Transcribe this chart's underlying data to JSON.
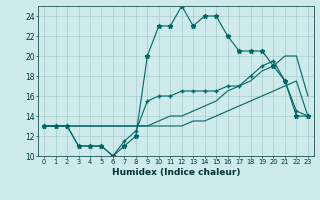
{
  "title": "",
  "xlabel": "Humidex (Indice chaleur)",
  "bg_color": "#ceeaea",
  "grid_color": "#aacccc",
  "line_color": "#006666",
  "xlim": [
    -0.5,
    23.5
  ],
  "ylim": [
    10,
    25
  ],
  "xticks": [
    0,
    1,
    2,
    3,
    4,
    5,
    6,
    7,
    8,
    9,
    10,
    11,
    12,
    13,
    14,
    15,
    16,
    17,
    18,
    19,
    20,
    21,
    22,
    23
  ],
  "yticks": [
    10,
    12,
    14,
    16,
    18,
    20,
    22,
    24
  ],
  "line1_x": [
    0,
    1,
    2,
    3,
    4,
    5,
    6,
    7,
    8,
    9,
    10,
    11,
    12,
    13,
    14,
    15,
    16,
    17,
    18,
    19,
    20,
    21,
    22,
    23
  ],
  "line1_y": [
    13,
    13,
    13,
    13,
    13,
    13,
    13,
    13,
    13,
    13,
    13,
    13,
    13,
    13.5,
    13.5,
    14,
    14.5,
    15,
    15.5,
    16,
    16.5,
    17,
    17.5,
    14
  ],
  "line2_x": [
    0,
    1,
    2,
    3,
    4,
    5,
    6,
    7,
    8,
    9,
    10,
    11,
    12,
    13,
    14,
    15,
    16,
    17,
    18,
    19,
    20,
    21,
    22,
    23
  ],
  "line2_y": [
    13,
    13,
    13,
    13,
    13,
    13,
    13,
    13,
    13,
    13,
    13.5,
    14,
    14,
    14.5,
    15,
    15.5,
    16.5,
    17,
    17.5,
    18.5,
    19,
    20,
    20,
    16
  ],
  "line3_x": [
    0,
    1,
    2,
    3,
    4,
    5,
    6,
    7,
    8,
    9,
    10,
    11,
    12,
    13,
    14,
    15,
    16,
    17,
    18,
    19,
    20,
    21,
    22,
    23
  ],
  "line3_y": [
    13,
    13,
    13,
    11,
    11,
    11,
    10,
    11,
    12,
    20,
    23,
    23,
    25,
    23,
    24,
    24,
    22,
    20.5,
    20.5,
    20.5,
    19,
    17.5,
    14,
    14
  ],
  "line4_x": [
    0,
    1,
    2,
    3,
    4,
    5,
    6,
    7,
    8,
    9,
    10,
    11,
    12,
    13,
    14,
    15,
    16,
    17,
    18,
    19,
    20,
    21,
    22,
    23
  ],
  "line4_y": [
    13,
    13,
    13,
    11,
    11,
    11,
    10,
    11.5,
    12.5,
    15.5,
    16,
    16,
    16.5,
    16.5,
    16.5,
    16.5,
    17,
    17,
    18,
    19,
    19.5,
    17.5,
    14.5,
    14
  ]
}
